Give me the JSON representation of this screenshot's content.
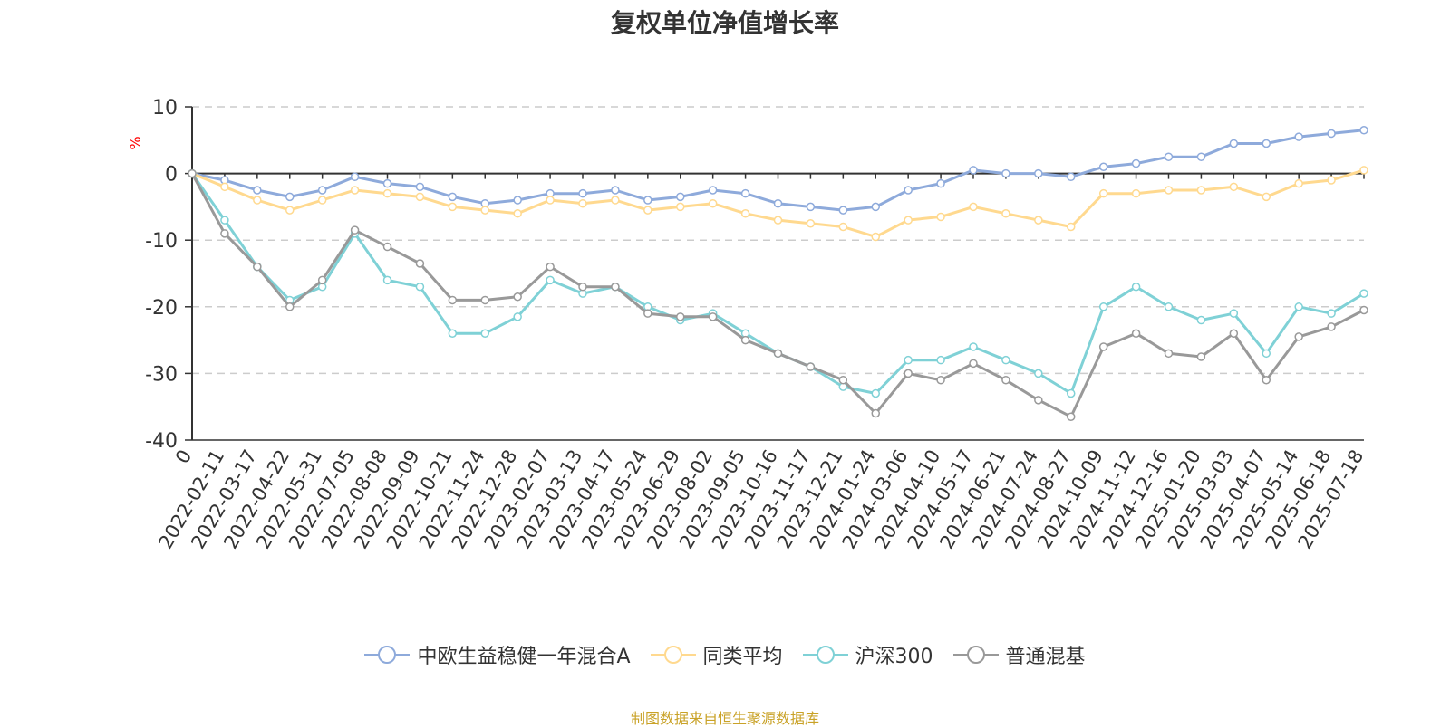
{
  "chart_data": {
    "type": "line",
    "title": "复权单位净值增长率",
    "ylabel": "%",
    "ylim": [
      -40,
      10
    ],
    "yticks": [
      10,
      0,
      -10,
      -20,
      -30,
      -40
    ],
    "x_tick_labels": [
      "0",
      "2022-02-11",
      "2022-03-17",
      "2022-04-22",
      "2022-05-31",
      "2022-07-05",
      "2022-08-08",
      "2022-09-09",
      "2022-10-21",
      "2022-11-24",
      "2022-12-28",
      "2023-02-07",
      "2023-03-13",
      "2023-04-17",
      "2023-05-24",
      "2023-06-29",
      "2023-08-02",
      "2023-09-05",
      "2023-10-16",
      "2023-11-17",
      "2023-12-21",
      "2024-01-24",
      "2024-03-06",
      "2024-04-10",
      "2024-05-17",
      "2024-06-21",
      "2024-07-24",
      "2024-08-27",
      "2024-10-09",
      "2024-11-12",
      "2024-12-16",
      "2025-01-20",
      "2025-03-03",
      "2025-04-07",
      "2025-05-14",
      "2025-06-18",
      "2025-07-18"
    ],
    "grid": true,
    "legend_position": "bottom",
    "series": [
      {
        "name": "中欧生益稳健一年混合A",
        "color": "#8eaadb",
        "values": [
          0,
          -1,
          -2.5,
          -3.5,
          -2.5,
          -0.5,
          -1.5,
          -2,
          -3.5,
          -4.5,
          -4,
          -3,
          -3,
          -2.5,
          -4,
          -3.5,
          -2.5,
          -3,
          -4.5,
          -5,
          -5.5,
          -5,
          -2.5,
          -1.5,
          0.5,
          0,
          0,
          -0.5,
          1,
          1.5,
          2.5,
          2.5,
          4.5,
          4.5,
          5.5,
          6,
          6.5
        ]
      },
      {
        "name": "同类平均",
        "color": "#ffd98f",
        "values": [
          0,
          -2,
          -4,
          -5.5,
          -4,
          -2.5,
          -3,
          -3.5,
          -5,
          -5.5,
          -6,
          -4,
          -4.5,
          -4,
          -5.5,
          -5,
          -4.5,
          -6,
          -7,
          -7.5,
          -8,
          -9.5,
          -7,
          -6.5,
          -5,
          -6,
          -7,
          -8,
          -3,
          -3,
          -2.5,
          -2.5,
          -2,
          -3.5,
          -1.5,
          -1,
          0.5
        ]
      },
      {
        "name": "沪深300",
        "color": "#7fd1d6",
        "values": [
          0,
          -7,
          -14,
          -19,
          -17,
          -9,
          -16,
          -17,
          -24,
          -24,
          -21.5,
          -16,
          -18,
          -17,
          -20,
          -22,
          -21,
          -24,
          -27,
          -29,
          -32,
          -33,
          -28,
          -28,
          -26,
          -28,
          -30,
          -33,
          -20,
          -17,
          -20,
          -22,
          -21,
          -27,
          -20,
          -21,
          -18
        ]
      },
      {
        "name": "普通混基",
        "color": "#999999",
        "values": [
          0,
          -9,
          -14,
          -20,
          -16,
          -8.5,
          -11,
          -13.5,
          -19,
          -19,
          -18.5,
          -14,
          -17,
          -17,
          -21,
          -21.5,
          -21.5,
          -25,
          -27,
          -29,
          -31,
          -36,
          -30,
          -31,
          -28.5,
          -31,
          -34,
          -36.5,
          -26,
          -24,
          -27,
          -27.5,
          -24,
          -31,
          -24.5,
          -23,
          -20.5
        ]
      }
    ]
  },
  "legend": [
    {
      "label": "中欧生益稳健一年混合A",
      "color": "#8eaadb"
    },
    {
      "label": "同类平均",
      "color": "#ffd98f"
    },
    {
      "label": "沪深300",
      "color": "#7fd1d6"
    },
    {
      "label": "普通混基",
      "color": "#999999"
    }
  ],
  "source_note": "制图数据来自恒生聚源数据库"
}
